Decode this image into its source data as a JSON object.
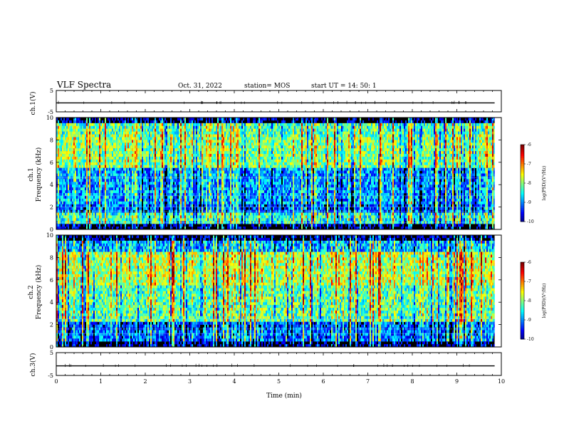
{
  "header": {
    "title": "VLF Spectra",
    "date": "Oct. 31, 2022",
    "station": "station= MOS",
    "start": "start  UT =   14: 50: 1"
  },
  "chart_data": [
    {
      "type": "line",
      "panel": "ch1-waveform",
      "ylabel": "ch.1(V)",
      "ylim": [
        -5,
        5
      ],
      "yticks": [
        "5",
        "-5"
      ],
      "series": [
        {
          "values": [
            -0.8,
            -0.8,
            -0.8,
            -0.8
          ]
        }
      ],
      "x": [
        0,
        3.3,
        6.6,
        9.85
      ]
    },
    {
      "type": "heatmap",
      "panel": "ch1-spectrogram",
      "ylabel": "Frequency (kHz)",
      "channel": "ch.1",
      "xlim": [
        0,
        10
      ],
      "ylim": [
        0,
        10
      ],
      "yticks": [
        "0",
        "2",
        "4",
        "6",
        "8",
        "10"
      ],
      "data_extent_min": 9.85,
      "colorbar": {
        "label": "log(PSD)(V²/Hz)",
        "range": [
          -10,
          -6
        ],
        "ticks": [
          "-6",
          "-7",
          "-8",
          "-9",
          "-10"
        ]
      }
    },
    {
      "type": "heatmap",
      "panel": "ch2-spectrogram",
      "ylabel": "Frequency (kHz)",
      "channel": "ch.2",
      "xlim": [
        0,
        10
      ],
      "ylim": [
        0,
        10
      ],
      "yticks": [
        "0",
        "2",
        "4",
        "6",
        "8",
        "10"
      ],
      "data_extent_min": 9.85,
      "colorbar": {
        "label": "log(PSD)(V²/Hz)",
        "range": [
          -10,
          -6
        ],
        "ticks": [
          "-6",
          "-7",
          "-8",
          "-9",
          "-10"
        ]
      }
    },
    {
      "type": "line",
      "panel": "ch3-waveform",
      "ylabel": "ch.3(V)",
      "ylim": [
        -5,
        5
      ],
      "yticks": [
        "5",
        "-5"
      ],
      "series": [
        {
          "values": [
            -0.8,
            -0.8,
            -0.8,
            -0.8
          ]
        }
      ],
      "x": [
        0,
        3.3,
        6.6,
        9.85
      ],
      "xlabel": "Time  (min)",
      "xticks": [
        "0",
        "1",
        "2",
        "3",
        "4",
        "5",
        "6",
        "7",
        "8",
        "9",
        "10"
      ]
    }
  ],
  "colors": {
    "high": "#ff0000",
    "mid": "#00ff00",
    "low": "#0000ff",
    "floor": "#000000"
  }
}
